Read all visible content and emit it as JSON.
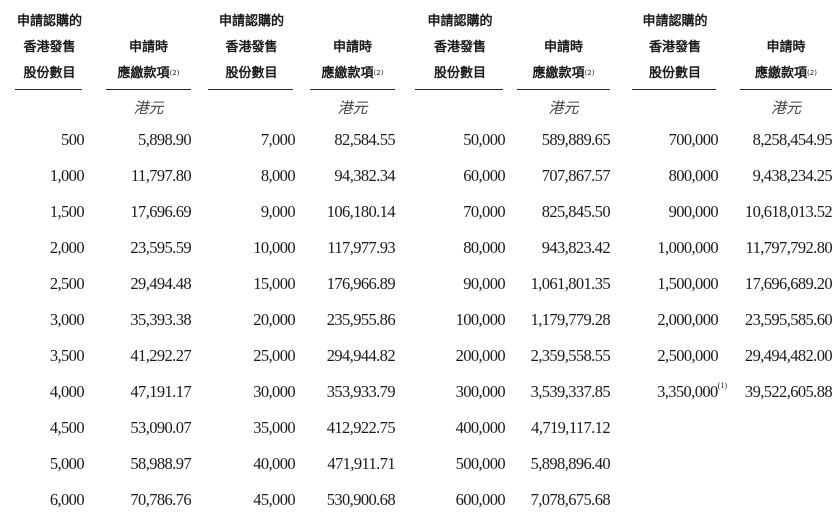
{
  "headers": {
    "shares_lines": [
      "申請認購的",
      "香港發售",
      "股份數目"
    ],
    "amount_lines": [
      "申請時",
      "應繳款項"
    ],
    "amount_note": "(2)",
    "unit": "港元"
  },
  "groups": [
    {
      "rows": [
        {
          "shares": "500",
          "amount": "5,898.90"
        },
        {
          "shares": "1,000",
          "amount": "11,797.80"
        },
        {
          "shares": "1,500",
          "amount": "17,696.69"
        },
        {
          "shares": "2,000",
          "amount": "23,595.59"
        },
        {
          "shares": "2,500",
          "amount": "29,494.48"
        },
        {
          "shares": "3,000",
          "amount": "35,393.38"
        },
        {
          "shares": "3,500",
          "amount": "41,292.27"
        },
        {
          "shares": "4,000",
          "amount": "47,191.17"
        },
        {
          "shares": "4,500",
          "amount": "53,090.07"
        },
        {
          "shares": "5,000",
          "amount": "58,988.97"
        },
        {
          "shares": "6,000",
          "amount": "70,786.76"
        }
      ]
    },
    {
      "rows": [
        {
          "shares": "7,000",
          "amount": "82,584.55"
        },
        {
          "shares": "8,000",
          "amount": "94,382.34"
        },
        {
          "shares": "9,000",
          "amount": "106,180.14"
        },
        {
          "shares": "10,000",
          "amount": "117,977.93"
        },
        {
          "shares": "15,000",
          "amount": "176,966.89"
        },
        {
          "shares": "20,000",
          "amount": "235,955.86"
        },
        {
          "shares": "25,000",
          "amount": "294,944.82"
        },
        {
          "shares": "30,000",
          "amount": "353,933.79"
        },
        {
          "shares": "35,000",
          "amount": "412,922.75"
        },
        {
          "shares": "40,000",
          "amount": "471,911.71"
        },
        {
          "shares": "45,000",
          "amount": "530,900.68"
        }
      ]
    },
    {
      "rows": [
        {
          "shares": "50,000",
          "amount": "589,889.65"
        },
        {
          "shares": "60,000",
          "amount": "707,867.57"
        },
        {
          "shares": "70,000",
          "amount": "825,845.50"
        },
        {
          "shares": "80,000",
          "amount": "943,823.42"
        },
        {
          "shares": "90,000",
          "amount": "1,061,801.35"
        },
        {
          "shares": "100,000",
          "amount": "1,179,779.28"
        },
        {
          "shares": "200,000",
          "amount": "2,359,558.55"
        },
        {
          "shares": "300,000",
          "amount": "3,539,337.85"
        },
        {
          "shares": "400,000",
          "amount": "4,719,117.12"
        },
        {
          "shares": "500,000",
          "amount": "5,898,896.40"
        },
        {
          "shares": "600,000",
          "amount": "7,078,675.68"
        }
      ]
    },
    {
      "rows": [
        {
          "shares": "700,000",
          "amount": "8,258,454.95"
        },
        {
          "shares": "800,000",
          "amount": "9,438,234.25"
        },
        {
          "shares": "900,000",
          "amount": "10,618,013.52"
        },
        {
          "shares": "1,000,000",
          "amount": "11,797,792.80"
        },
        {
          "shares": "1,500,000",
          "amount": "17,696,689.20"
        },
        {
          "shares": "2,000,000",
          "amount": "23,595,585.60"
        },
        {
          "shares": "2,500,000",
          "amount": "29,494,482.00"
        },
        {
          "shares": "3,350,000",
          "shares_note": "(1)",
          "amount": "39,522,605.88"
        }
      ]
    }
  ]
}
